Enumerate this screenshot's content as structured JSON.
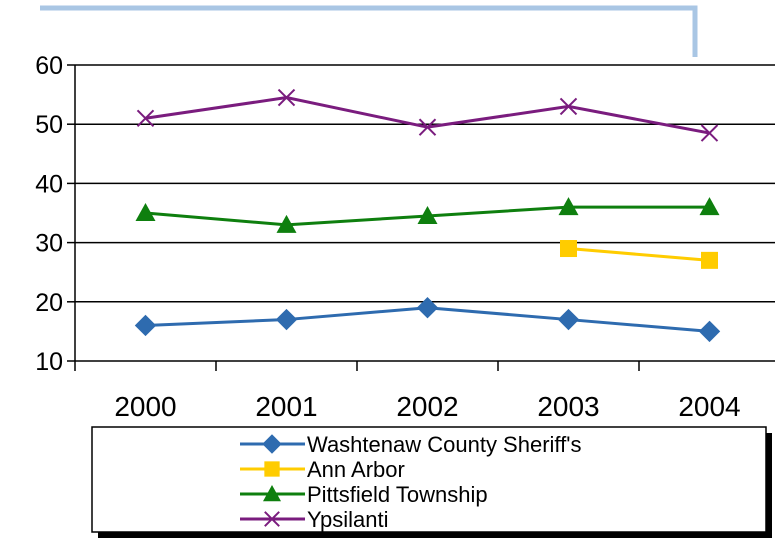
{
  "chart_data": {
    "type": "line",
    "title": "",
    "xlabel": "",
    "ylabel": "",
    "categories": [
      "2000",
      "2001",
      "2002",
      "2003",
      "2004"
    ],
    "ylim": [
      10,
      60
    ],
    "yticks": [
      "10",
      "20",
      "30",
      "40",
      "50",
      "60"
    ],
    "grid": "horizontal",
    "legend_position": "bottom",
    "series": [
      {
        "name": "Washtenaw County Sheriff's",
        "values": [
          16,
          17,
          19,
          17,
          15
        ],
        "color": "#2E6BAF",
        "marker": "diamond"
      },
      {
        "name": "Ann Arbor",
        "values": [
          null,
          null,
          null,
          29,
          27
        ],
        "color": "#FFCC00",
        "marker": "square"
      },
      {
        "name": "Pittsfield Township",
        "values": [
          35,
          33,
          34.5,
          36,
          36
        ],
        "color": "#0E7F0E",
        "marker": "triangle"
      },
      {
        "name": "Ypsilanti",
        "values": [
          51,
          54.5,
          49.5,
          53,
          48.5
        ],
        "color": "#7A1C7E",
        "marker": "x"
      }
    ]
  },
  "decor": {
    "frame_color": "#A9C6E4"
  }
}
